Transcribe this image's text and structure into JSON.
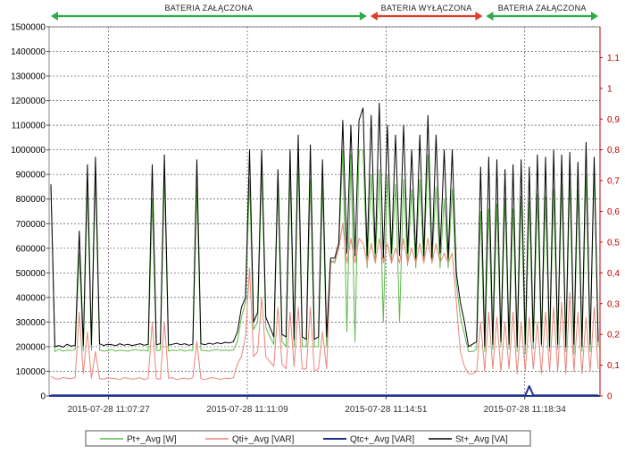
{
  "chart_data": {
    "type": "line",
    "title": "",
    "xlabel": "",
    "ylabel": "",
    "ylim": [
      0,
      1500000
    ],
    "y2lim": [
      0,
      1.2
    ],
    "yticks": [
      0,
      100000,
      200000,
      300000,
      400000,
      500000,
      600000,
      700000,
      800000,
      900000,
      1000000,
      1100000,
      1200000,
      1300000,
      1400000,
      1500000
    ],
    "y2ticks": [
      "0",
      "0,1",
      "0,2",
      "0,3",
      "0,4",
      "0,5",
      "0,6",
      "0,7",
      "0,8",
      "0,9",
      "1",
      "1,1"
    ],
    "y2tick_values": [
      0,
      0.1,
      0.2,
      0.3,
      0.4,
      0.5,
      0.6,
      0.7,
      0.8,
      0.9,
      1.0,
      1.1
    ],
    "x_ticks": [
      "2015-07-28 11:07:27",
      "2015-07-28 11:11:09",
      "2015-07-28 11:14:51",
      "2015-07-28 11:18:34"
    ],
    "grid": true,
    "legend_position": "bottom",
    "colors": {
      "pt": "#5fb84a",
      "qti": "#e8857a",
      "qtc": "#1f2f8f",
      "st": "#000000",
      "on": "#2eaa4a",
      "off": "#e03a2a"
    },
    "series": [
      {
        "name": "Pt+_Avg [W]",
        "color_key": "pt",
        "values": [
          860000,
          180000,
          190000,
          182000,
          186000,
          184000,
          188000,
          580000,
          182000,
          850000,
          184000,
          900000,
          186000,
          182000,
          184000,
          188000,
          182000,
          186000,
          184000,
          182000,
          186000,
          188000,
          184000,
          186000,
          182000,
          800000,
          184000,
          186000,
          900000,
          182000,
          186000,
          184000,
          188000,
          182000,
          186000,
          184000,
          850000,
          186000,
          184000,
          182000,
          186000,
          188000,
          184000,
          186000,
          184000,
          186000,
          220000,
          320000,
          380000,
          880000,
          270000,
          300000,
          920000,
          280000,
          240000,
          210000,
          860000,
          220000,
          200000,
          900000,
          200000,
          960000,
          200000,
          200000,
          880000,
          200000,
          200000,
          850000,
          200000,
          550000,
          540000,
          600000,
          1000000,
          260000,
          980000,
          220000,
          1000000,
          1000000,
          520000,
          900000,
          540000,
          920000,
          300000,
          900000,
          540000,
          860000,
          300000,
          880000,
          530000,
          840000,
          520000,
          880000,
          540000,
          980000,
          540000,
          850000,
          520000,
          800000,
          520000,
          840000,
          460000,
          320000,
          250000,
          180000,
          180000,
          190000,
          750000,
          180000,
          760000,
          190000,
          780000,
          200000,
          800000,
          190000,
          760000,
          180000,
          810000,
          170000,
          790000,
          190000,
          820000,
          200000,
          810000,
          180000,
          840000,
          190000,
          860000,
          180000,
          880000,
          170000,
          840000,
          180000,
          900000,
          180000,
          930000,
          200000
        ]
      },
      {
        "name": "Qti+_Avg [VAR]",
        "color_key": "qti",
        "values": [
          80000,
          70000,
          68000,
          75000,
          72000,
          70000,
          74000,
          340000,
          90000,
          260000,
          72000,
          180000,
          70000,
          68000,
          74000,
          72000,
          70000,
          66000,
          74000,
          72000,
          68000,
          70000,
          74000,
          66000,
          72000,
          300000,
          70000,
          68000,
          300000,
          72000,
          74000,
          66000,
          70000,
          72000,
          68000,
          74000,
          220000,
          70000,
          66000,
          72000,
          74000,
          70000,
          68000,
          72000,
          70000,
          74000,
          130000,
          160000,
          240000,
          520000,
          160000,
          180000,
          400000,
          160000,
          140000,
          120000,
          360000,
          130000,
          110000,
          340000,
          120000,
          360000,
          110000,
          110000,
          360000,
          100000,
          110000,
          260000,
          110000,
          540000,
          550000,
          600000,
          700000,
          540000,
          640000,
          540000,
          640000,
          620000,
          540000,
          620000,
          540000,
          640000,
          540000,
          620000,
          540000,
          600000,
          540000,
          640000,
          540000,
          600000,
          540000,
          620000,
          540000,
          640000,
          540000,
          620000,
          540000,
          580000,
          540000,
          580000,
          380000,
          180000,
          120000,
          90000,
          90000,
          100000,
          300000,
          100000,
          340000,
          110000,
          320000,
          100000,
          300000,
          110000,
          340000,
          90000,
          300000,
          100000,
          320000,
          110000,
          300000,
          90000,
          340000,
          100000,
          360000,
          100000,
          380000,
          90000,
          420000,
          100000,
          340000,
          90000,
          320000,
          100000,
          360000,
          110000
        ]
      },
      {
        "name": "Qtc+_Avg [VAR]",
        "color_key": "qtc",
        "values": [
          2000,
          2000,
          2000,
          2000,
          2000,
          2000,
          2000,
          2000,
          2000,
          2000,
          2000,
          2000,
          2000,
          2000,
          2000,
          2000,
          2000,
          2000,
          2000,
          2000,
          2000,
          2000,
          2000,
          2000,
          2000,
          2000,
          2000,
          2000,
          2000,
          2000,
          2000,
          2000,
          2000,
          2000,
          2000,
          2000,
          2000,
          2000,
          2000,
          2000,
          2000,
          2000,
          2000,
          2000,
          2000,
          2000,
          2000,
          2000,
          2000,
          2000,
          2000,
          2000,
          2000,
          2000,
          2000,
          2000,
          2000,
          2000,
          2000,
          2000,
          2000,
          2000,
          2000,
          2000,
          2000,
          2000,
          2000,
          2000,
          2000,
          2000,
          2000,
          2000,
          2000,
          2000,
          2000,
          2000,
          2000,
          2000,
          2000,
          2000,
          2000,
          2000,
          2000,
          2000,
          2000,
          2000,
          2000,
          2000,
          2000,
          2000,
          2000,
          2000,
          2000,
          2000,
          2000,
          2000,
          2000,
          2000,
          2000,
          2000,
          2000,
          2000,
          2000,
          2000,
          2000,
          2000,
          2000,
          2000,
          2000,
          2000,
          2000,
          2000,
          2000,
          2000,
          2000,
          2000,
          2000,
          2000,
          40000,
          2000,
          2000,
          2000,
          2000,
          2000,
          2000,
          2000,
          2000,
          2000,
          2000,
          2000,
          2000,
          2000,
          2000,
          2000,
          2000,
          2000
        ]
      },
      {
        "name": "St+_Avg [VA]",
        "color_key": "st",
        "values": [
          860000,
          200000,
          205000,
          198000,
          210000,
          202000,
          206000,
          670000,
          205000,
          940000,
          208000,
          970000,
          212000,
          205000,
          210000,
          208000,
          204000,
          212000,
          206000,
          210000,
          205000,
          208000,
          212000,
          206000,
          210000,
          940000,
          208000,
          212000,
          980000,
          206000,
          210000,
          214000,
          208000,
          212000,
          206000,
          210000,
          960000,
          212000,
          208000,
          214000,
          210000,
          216000,
          212000,
          218000,
          215000,
          220000,
          260000,
          360000,
          400000,
          1000000,
          300000,
          340000,
          1000000,
          320000,
          280000,
          240000,
          920000,
          250000,
          240000,
          1000000,
          230000,
          1060000,
          240000,
          230000,
          1020000,
          230000,
          240000,
          960000,
          240000,
          560000,
          560000,
          620000,
          1120000,
          580000,
          1100000,
          570000,
          1120000,
          1170000,
          570000,
          1140000,
          580000,
          1190000,
          560000,
          1100000,
          580000,
          1060000,
          570000,
          1100000,
          580000,
          1000000,
          560000,
          1060000,
          570000,
          1140000,
          560000,
          1060000,
          580000,
          1000000,
          560000,
          1000000,
          500000,
          380000,
          300000,
          200000,
          210000,
          220000,
          930000,
          200000,
          970000,
          210000,
          960000,
          220000,
          920000,
          210000,
          940000,
          200000,
          960000,
          210000,
          930000,
          220000,
          980000,
          210000,
          970000,
          200000,
          1000000,
          210000,
          980000,
          200000,
          990000,
          210000,
          950000,
          200000,
          1030000,
          210000,
          970000,
          220000
        ]
      }
    ]
  },
  "banners": [
    {
      "label": "BATERIA ZAŁĄCZONA",
      "state": "on",
      "x_from": 0.0,
      "x_to": 0.58
    },
    {
      "label": "BATERIA WYŁĄCZONA",
      "state": "off",
      "x_from": 0.58,
      "x_to": 0.79
    },
    {
      "label": "BATERIA ZAŁĄCZONA",
      "state": "on",
      "x_from": 0.79,
      "x_to": 1.0
    }
  ]
}
